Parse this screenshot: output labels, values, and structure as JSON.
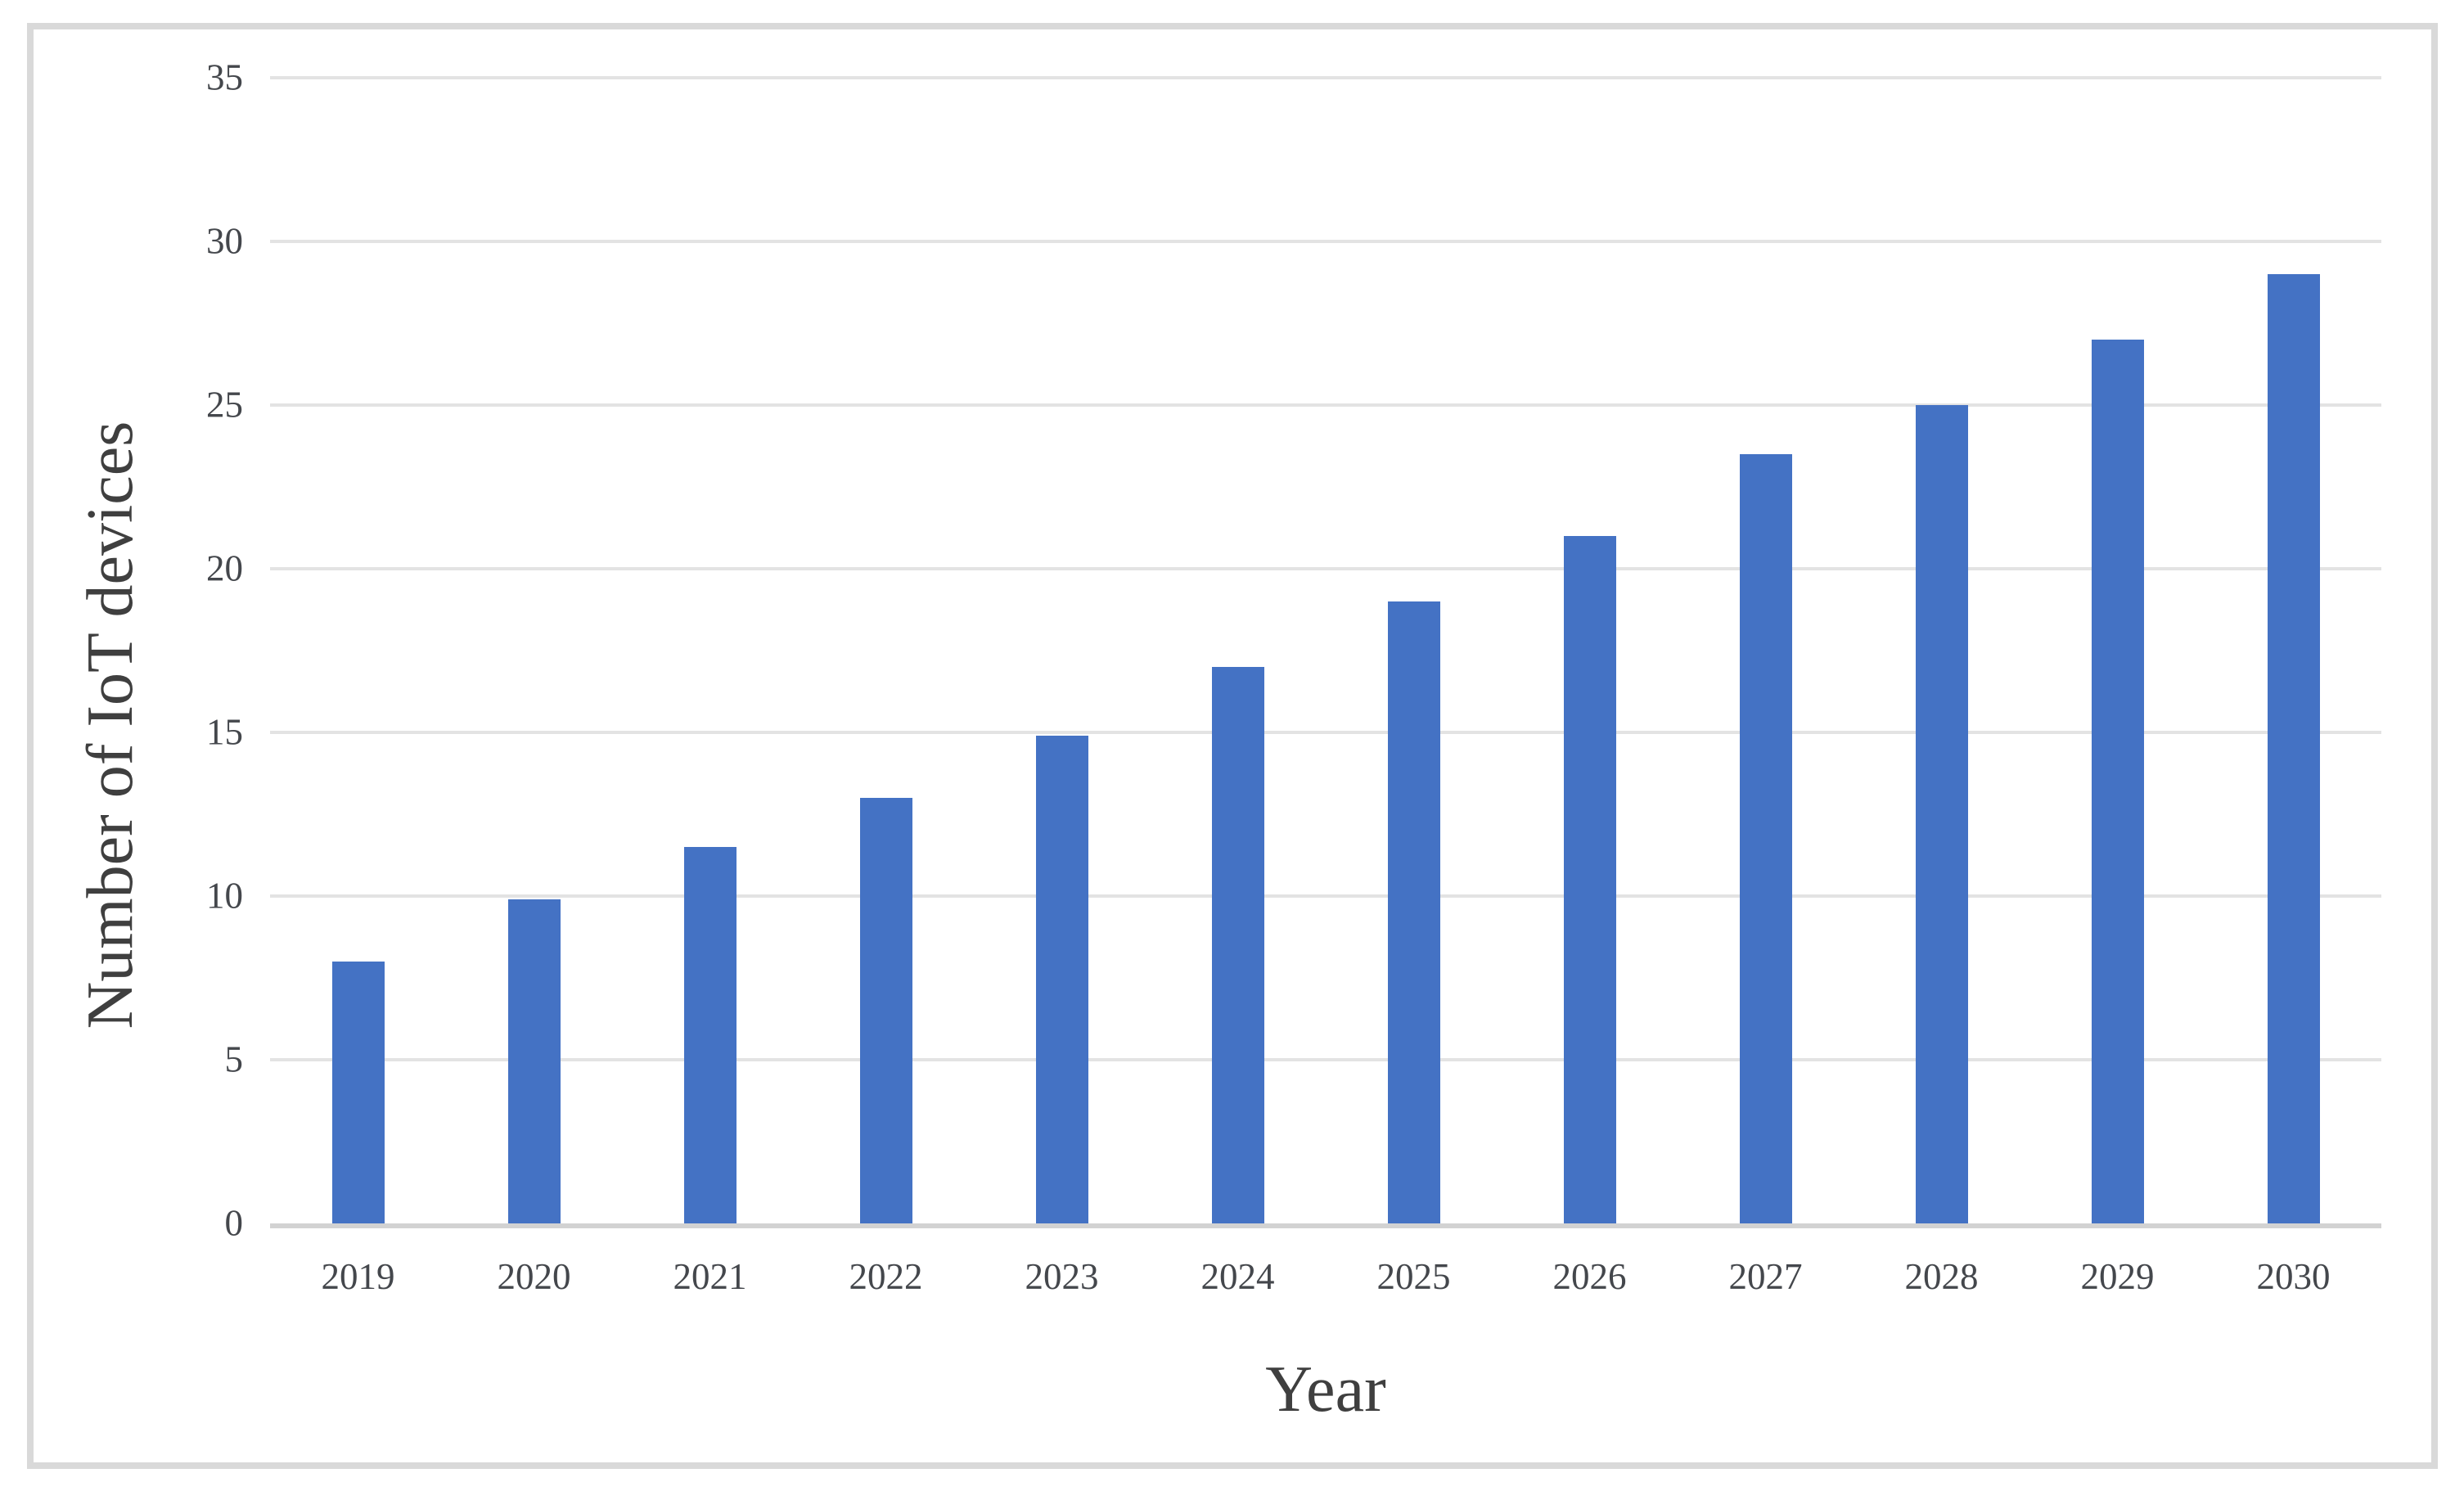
{
  "chart_data": {
    "type": "bar",
    "title": "",
    "xlabel": "Year",
    "ylabel": "Number of IoT devices",
    "categories": [
      "2019",
      "2020",
      "2021",
      "2022",
      "2023",
      "2024",
      "2025",
      "2026",
      "2027",
      "2028",
      "2029",
      "2030"
    ],
    "values": [
      8,
      9.9,
      11.5,
      13,
      14.9,
      17,
      19,
      21,
      23.5,
      25,
      27,
      29
    ],
    "series_name": "Number of IoT devices",
    "ylim": [
      0,
      35
    ],
    "yticks": [
      0,
      5,
      10,
      15,
      20,
      25,
      30,
      35
    ],
    "grid": "horizontal",
    "legend": "none",
    "colors": {
      "bar": "#4472c4",
      "gridline": "#e3e3e3",
      "axis_line": "#d2d2d2",
      "frame_border": "#d9d9d9",
      "tick_text": "#44474c",
      "title_text": "#3f3f3f",
      "background": "#ffffff"
    }
  }
}
